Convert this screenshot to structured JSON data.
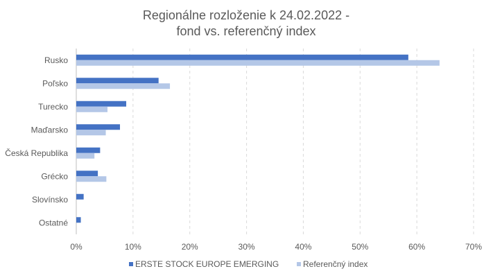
{
  "chart_data": {
    "type": "bar",
    "orientation": "horizontal",
    "title": [
      "Regionálne rozloženie k 24.02.2022 -",
      "fond vs. referenčný index"
    ],
    "categories": [
      "Rusko",
      "Poľsko",
      "Turecko",
      "Maďarsko",
      "Česká Republika",
      "Grécko",
      "Slovínsko",
      "Ostatné"
    ],
    "series": [
      {
        "name": "ERSTE STOCK EUROPE EMERGING",
        "color": "#4472c4",
        "values": [
          58.5,
          14.5,
          8.8,
          7.7,
          4.2,
          3.8,
          1.3,
          0.8
        ]
      },
      {
        "name": "Referenčný index",
        "color": "#b4c7e7",
        "values": [
          64.0,
          16.5,
          5.5,
          5.2,
          3.2,
          5.3,
          0,
          0
        ]
      }
    ],
    "xlim": [
      0,
      70
    ],
    "xticks": [
      "0%",
      "10%",
      "20%",
      "30%",
      "40%",
      "50%",
      "60%",
      "70%"
    ],
    "grid": true,
    "legend": "bottom"
  }
}
